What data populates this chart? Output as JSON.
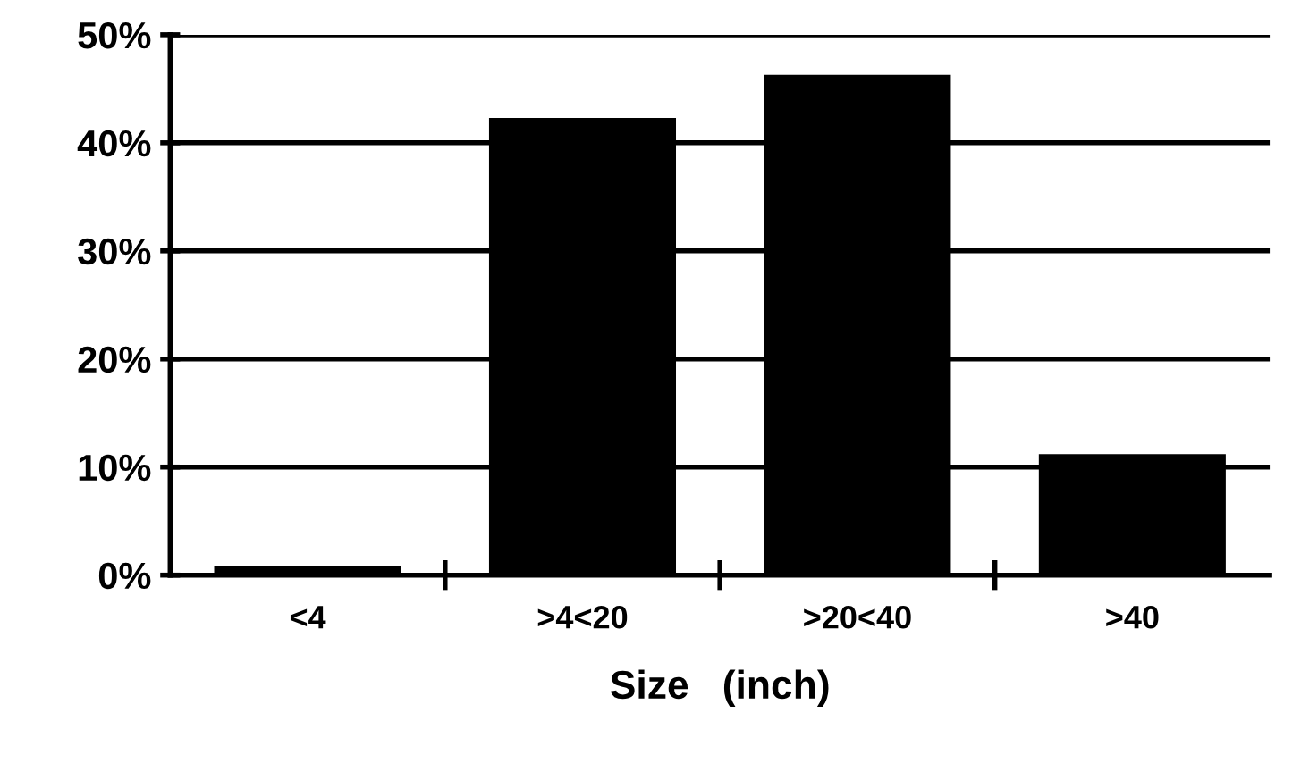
{
  "chart_data": {
    "type": "bar",
    "xlabel": "Size   (inch)",
    "categories": [
      "<4",
      ">4<20",
      ">20<40",
      ">40"
    ],
    "values": [
      0.8,
      42.3,
      46.3,
      11.2
    ],
    "color": "#000000",
    "ylim": [
      0,
      50
    ],
    "yticks": [
      {
        "value": 0,
        "label": "0%"
      },
      {
        "value": 10,
        "label": "10%"
      },
      {
        "value": 20,
        "label": "20%"
      },
      {
        "value": 30,
        "label": "30%"
      },
      {
        "value": 40,
        "label": "40%"
      },
      {
        "value": 50,
        "label": "50%"
      }
    ],
    "grid": "y",
    "legend": false
  }
}
